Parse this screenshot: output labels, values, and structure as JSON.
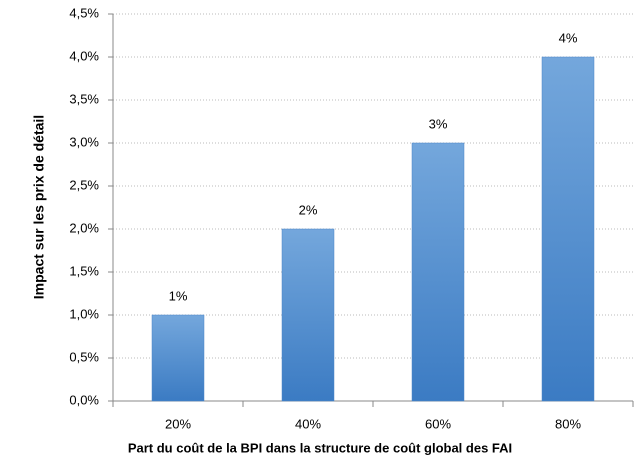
{
  "chart_data": {
    "type": "bar",
    "x_label": "Part du coût de la BPI dans la structure de coût global des FAI",
    "y_label": "Impact sur les prix de détail",
    "categories": [
      "20%",
      "40%",
      "60%",
      "80%"
    ],
    "values": [
      1,
      2,
      3,
      4
    ],
    "value_labels": [
      "1%",
      "2%",
      "3%",
      "4%"
    ],
    "color": "#4a86c8",
    "ylim": [
      0,
      4.5
    ],
    "yticks": [
      {
        "value": 0,
        "label": "0,0%"
      },
      {
        "value": 0.5,
        "label": "0,5%"
      },
      {
        "value": 1,
        "label": "1,0%"
      },
      {
        "value": 1.5,
        "label": "1,5%"
      },
      {
        "value": 2,
        "label": "2,0%"
      },
      {
        "value": 2.5,
        "label": "2,5%"
      },
      {
        "value": 3,
        "label": "3,0%"
      },
      {
        "value": 3.5,
        "label": "3,5%"
      },
      {
        "value": 4,
        "label": "4,0%"
      },
      {
        "value": 4.5,
        "label": "4,5%"
      }
    ],
    "grid": true
  }
}
